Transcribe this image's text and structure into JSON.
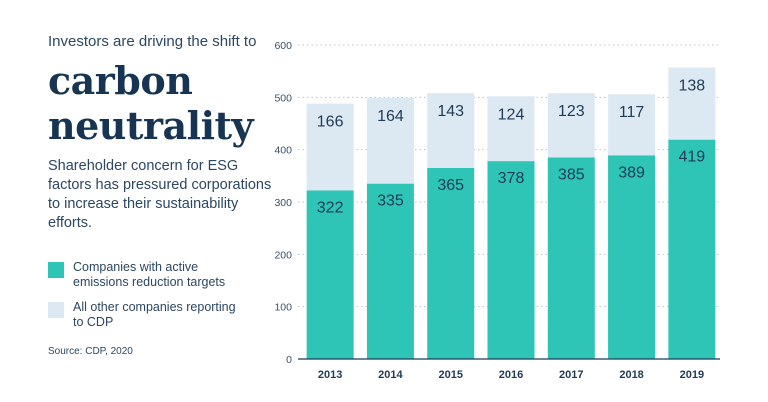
{
  "kicker": "Investors are driving the shift to",
  "headline": {
    "line1": "carbon",
    "line2": "neutrality"
  },
  "subtitle": "Shareholder concern for ESG factors has pressured corporations to increase their sustainability efforts.",
  "source": "Source: CDP, 2020",
  "colors": {
    "active": "#2ec4b6",
    "other": "#dde9f2",
    "text": "#1e3a55",
    "grid": "#b8c4cf"
  },
  "chart_data": {
    "type": "bar",
    "stacked": true,
    "categories": [
      "2013",
      "2014",
      "2015",
      "2016",
      "2017",
      "2018",
      "2019"
    ],
    "series": [
      {
        "name": "Companies with active emissions reduction targets",
        "values": [
          322,
          335,
          365,
          378,
          385,
          389,
          419
        ]
      },
      {
        "name": "All other companies reporting to CDP",
        "values": [
          166,
          164,
          143,
          124,
          123,
          117,
          138
        ]
      }
    ],
    "ylim": [
      0,
      600
    ],
    "yticks": [
      "0",
      "100",
      "200",
      "300",
      "400",
      "500",
      "600"
    ],
    "grid": true,
    "legend": "left",
    "title": "",
    "xlabel": "",
    "ylabel": ""
  }
}
